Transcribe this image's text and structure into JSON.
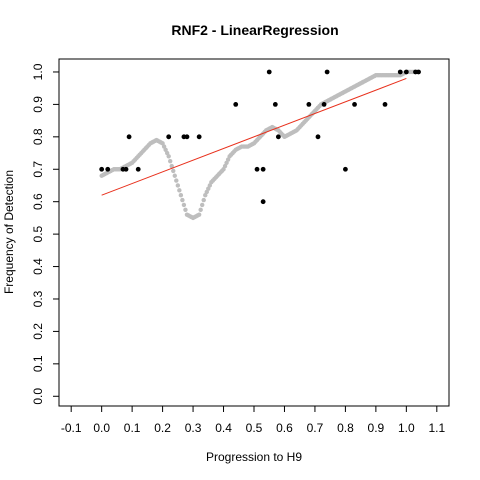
{
  "chart_data": {
    "type": "scatter",
    "title": "RNF2 - LinearRegression",
    "xlabel": "Progression to H9",
    "ylabel": "Frequency of Detection",
    "xlim": [
      -0.14,
      1.14
    ],
    "ylim": [
      -0.03,
      1.04
    ],
    "x_ticks": [
      -0.1,
      0.0,
      0.1,
      0.2,
      0.3,
      0.4,
      0.5,
      0.6,
      0.7,
      0.8,
      0.9,
      1.0,
      1.1
    ],
    "x_tick_labels": [
      "-0.1",
      "0.0",
      "0.1",
      "0.2",
      "0.3",
      "0.4",
      "0.5",
      "0.6",
      "0.7",
      "0.8",
      "0.9",
      "1.0",
      "1.1"
    ],
    "y_ticks": [
      0.0,
      0.1,
      0.2,
      0.3,
      0.4,
      0.5,
      0.6,
      0.7,
      0.8,
      0.9,
      1.0
    ],
    "y_tick_labels": [
      "0.0",
      "0.1",
      "0.2",
      "0.3",
      "0.4",
      "0.5",
      "0.6",
      "0.7",
      "0.8",
      "0.9",
      "1.0"
    ],
    "grid": false,
    "colors": {
      "observed": "#000000",
      "smoothed": "#bebebe",
      "regression": "#e8301c"
    },
    "smoothed_curve": {
      "x": [
        0.0,
        0.02,
        0.04,
        0.06,
        0.08,
        0.1,
        0.12,
        0.14,
        0.16,
        0.18,
        0.2,
        0.22,
        0.24,
        0.26,
        0.28,
        0.3,
        0.32,
        0.34,
        0.36,
        0.38,
        0.4,
        0.42,
        0.44,
        0.46,
        0.48,
        0.5,
        0.52,
        0.54,
        0.56,
        0.58,
        0.6,
        0.62,
        0.64,
        0.66,
        0.68,
        0.7,
        0.72,
        0.74,
        0.76,
        0.78,
        0.8,
        0.82,
        0.84,
        0.86,
        0.88,
        0.9,
        0.92,
        0.94,
        0.96,
        0.98,
        1.0,
        1.02,
        1.04
      ],
      "y": [
        0.68,
        0.69,
        0.7,
        0.7,
        0.71,
        0.72,
        0.74,
        0.76,
        0.78,
        0.79,
        0.78,
        0.74,
        0.68,
        0.62,
        0.56,
        0.55,
        0.56,
        0.62,
        0.66,
        0.68,
        0.7,
        0.74,
        0.76,
        0.77,
        0.77,
        0.78,
        0.8,
        0.82,
        0.83,
        0.82,
        0.8,
        0.81,
        0.82,
        0.84,
        0.86,
        0.88,
        0.9,
        0.91,
        0.92,
        0.93,
        0.94,
        0.95,
        0.96,
        0.97,
        0.98,
        0.99,
        0.99,
        0.99,
        0.99,
        0.99,
        1.0,
        1.0,
        1.0
      ]
    },
    "observed_points": {
      "x": [
        0.0,
        0.02,
        0.07,
        0.08,
        0.09,
        0.12,
        0.22,
        0.27,
        0.28,
        0.32,
        0.44,
        0.51,
        0.53,
        0.53,
        0.55,
        0.57,
        0.58,
        0.68,
        0.71,
        0.73,
        0.74,
        0.8,
        0.83,
        0.93,
        0.98,
        1.0,
        1.03,
        1.04
      ],
      "y": [
        0.7,
        0.7,
        0.7,
        0.7,
        0.8,
        0.7,
        0.8,
        0.8,
        0.8,
        0.8,
        0.9,
        0.7,
        0.7,
        0.6,
        1.0,
        0.9,
        0.8,
        0.9,
        0.8,
        0.9,
        1.0,
        0.7,
        0.9,
        0.9,
        1.0,
        1.0,
        1.0,
        1.0
      ]
    },
    "regression_line": {
      "x": [
        0.0,
        1.0
      ],
      "y": [
        0.62,
        0.98
      ]
    }
  }
}
